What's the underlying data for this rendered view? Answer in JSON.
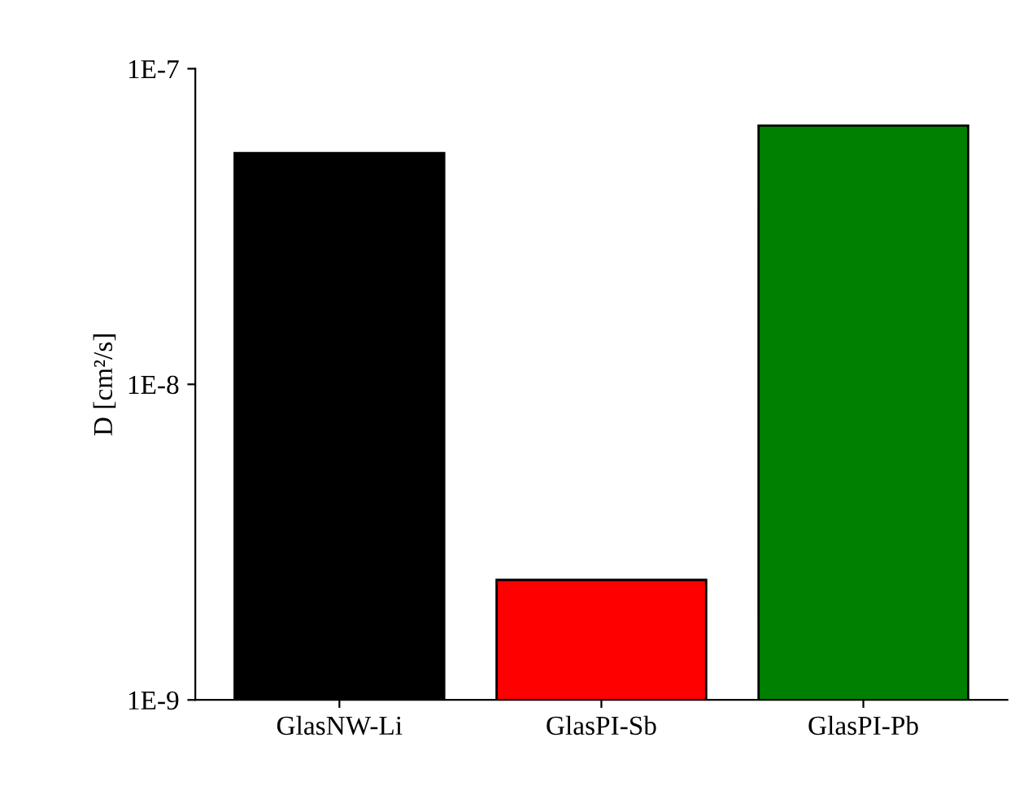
{
  "chart_data": {
    "type": "bar",
    "ylabel": "D [cm²/s]",
    "categories": [
      "GlasNW-Li",
      "GlasPI-Sb",
      "GlasPI-Pb"
    ],
    "values": [
      5.4e-08,
      2.4e-09,
      6.6e-08
    ],
    "colors": [
      "#000000",
      "#ff0000",
      "#008000"
    ],
    "log": true,
    "ylim": [
      1e-09,
      1e-07
    ],
    "yticks": [
      {
        "value": 1e-09,
        "label": "1E-9"
      },
      {
        "value": 1e-08,
        "label": "1E-8"
      },
      {
        "value": 1e-07,
        "label": "1E-7"
      }
    ],
    "grid": false,
    "legend": false
  }
}
